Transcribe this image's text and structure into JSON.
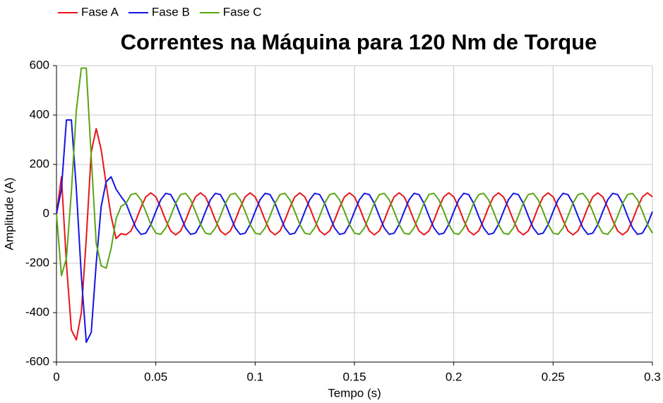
{
  "chart_data": {
    "type": "line",
    "title": "Correntes na Máquina para 120 Nm de Torque",
    "x_label": "Tempo (s)",
    "y_label": "Amplitude (A)",
    "x": [
      0,
      0.0025,
      0.005,
      0.0075,
      0.01,
      0.0125,
      0.015,
      0.0175,
      0.02,
      0.0225,
      0.025,
      0.0275,
      0.03,
      0.0325,
      0.035,
      0.0375,
      0.04,
      0.0425,
      0.045,
      0.0475,
      0.05,
      0.0525,
      0.055,
      0.0575,
      0.06,
      0.0625,
      0.065,
      0.0675,
      0.07,
      0.0725,
      0.075,
      0.0775,
      0.08,
      0.0825,
      0.085,
      0.0875,
      0.09,
      0.0925,
      0.095,
      0.0975,
      0.1,
      0.1025,
      0.105,
      0.1075,
      0.11,
      0.1125,
      0.115,
      0.1175,
      0.12,
      0.1225,
      0.125,
      0.1275,
      0.13,
      0.1325,
      0.135,
      0.1375,
      0.14,
      0.1425,
      0.145,
      0.1475,
      0.15,
      0.1525,
      0.155,
      0.1575,
      0.16,
      0.1625,
      0.165,
      0.1675,
      0.17,
      0.1725,
      0.175,
      0.1775,
      0.18,
      0.1825,
      0.185,
      0.1875,
      0.19,
      0.1925,
      0.195,
      0.1975,
      0.2,
      0.2025,
      0.205,
      0.2075,
      0.21,
      0.2125,
      0.215,
      0.2175,
      0.22,
      0.2225,
      0.225,
      0.2275,
      0.23,
      0.2325,
      0.235,
      0.2375,
      0.24,
      0.2425,
      0.245,
      0.2475,
      0.25,
      0.2525,
      0.255,
      0.2575,
      0.26,
      0.2625,
      0.265,
      0.2675,
      0.27,
      0.2725,
      0.275,
      0.2775,
      0.28,
      0.2825,
      0.285,
      0.2875,
      0.29,
      0.2925,
      0.295,
      0.2975,
      0.3
    ],
    "series": [
      {
        "name": "Fase A",
        "color": "#e8141a",
        "values": [
          0,
          150,
          -200,
          -470,
          -510,
          -400,
          -100,
          250,
          345,
          260,
          120,
          -10,
          -100,
          -80,
          -85,
          -69,
          -26,
          26,
          69,
          85,
          69,
          26,
          -26,
          -69,
          -85,
          -69,
          -26,
          26,
          69,
          85,
          69,
          26,
          -26,
          -69,
          -85,
          -69,
          -26,
          26,
          69,
          85,
          69,
          26,
          -26,
          -69,
          -85,
          -69,
          -26,
          26,
          69,
          85,
          69,
          26,
          -26,
          -69,
          -85,
          -69,
          -26,
          26,
          69,
          85,
          69,
          26,
          -26,
          -69,
          -85,
          -69,
          -26,
          26,
          69,
          85,
          69,
          26,
          -26,
          -69,
          -85,
          -69,
          -26,
          26,
          69,
          85,
          69,
          26,
          -26,
          -69,
          -85,
          -69,
          -26,
          26,
          69,
          85,
          69,
          26,
          -26,
          -69,
          -85,
          -69,
          -26,
          26,
          69,
          85,
          69,
          26,
          -26,
          -69,
          -85,
          -69,
          -26,
          26,
          69,
          85,
          69,
          26,
          -26,
          -69,
          -85,
          -69,
          -26,
          26,
          69,
          85,
          69
        ]
      },
      {
        "name": "Fase B",
        "color": "#1414e6",
        "values": [
          0,
          100,
          380,
          380,
          100,
          -250,
          -520,
          -480,
          -200,
          30,
          130,
          150,
          100,
          70,
          43,
          -9,
          -57,
          -83,
          -78,
          -43,
          9,
          57,
          83,
          78,
          43,
          -9,
          -57,
          -83,
          -78,
          -43,
          9,
          57,
          83,
          78,
          43,
          -9,
          -57,
          -83,
          -78,
          -43,
          9,
          57,
          83,
          78,
          43,
          -9,
          -57,
          -83,
          -78,
          -43,
          9,
          57,
          83,
          78,
          43,
          -9,
          -57,
          -83,
          -78,
          -43,
          9,
          57,
          83,
          78,
          43,
          -9,
          -57,
          -83,
          -78,
          -43,
          9,
          57,
          83,
          78,
          43,
          -9,
          -57,
          -83,
          -78,
          -43,
          9,
          57,
          83,
          78,
          43,
          -9,
          -57,
          -83,
          -78,
          -43,
          9,
          57,
          83,
          78,
          43,
          -9,
          -57,
          -83,
          -78,
          -43,
          9,
          57,
          83,
          78,
          43,
          -9,
          -57,
          -83,
          -78,
          -43,
          9,
          57,
          83,
          78,
          43,
          -9,
          -57,
          -83,
          -78,
          -43,
          9
        ]
      },
      {
        "name": "Fase C",
        "color": "#5aa514",
        "values": [
          0,
          -250,
          -180,
          90,
          420,
          590,
          590,
          230,
          -120,
          -210,
          -220,
          -140,
          -20,
          30,
          43,
          78,
          83,
          57,
          9,
          -43,
          -78,
          -83,
          -57,
          -9,
          43,
          78,
          83,
          57,
          9,
          -43,
          -78,
          -83,
          -57,
          -9,
          43,
          78,
          83,
          57,
          9,
          -43,
          -78,
          -83,
          -57,
          -9,
          43,
          78,
          83,
          57,
          9,
          -43,
          -78,
          -83,
          -57,
          -9,
          43,
          78,
          83,
          57,
          9,
          -43,
          -78,
          -83,
          -57,
          -9,
          43,
          78,
          83,
          57,
          9,
          -43,
          -78,
          -83,
          -57,
          -9,
          43,
          78,
          83,
          57,
          9,
          -43,
          -78,
          -83,
          -57,
          -9,
          43,
          78,
          83,
          57,
          9,
          -43,
          -78,
          -83,
          -57,
          -9,
          43,
          78,
          83,
          57,
          9,
          -43,
          -78,
          -83,
          -57,
          -9,
          43,
          78,
          83,
          57,
          9,
          -43,
          -78,
          -83,
          -57,
          -9,
          43,
          78,
          83,
          57,
          9,
          -43,
          -78
        ]
      }
    ],
    "xlim": [
      0,
      0.3
    ],
    "xticks": [
      0,
      0.05,
      0.1,
      0.15,
      0.2,
      0.25,
      0.3
    ],
    "ylim": [
      -600,
      600
    ],
    "yticks": [
      -600,
      -400,
      -200,
      0,
      200,
      400,
      600
    ],
    "grid": true,
    "legend": "top-left"
  }
}
